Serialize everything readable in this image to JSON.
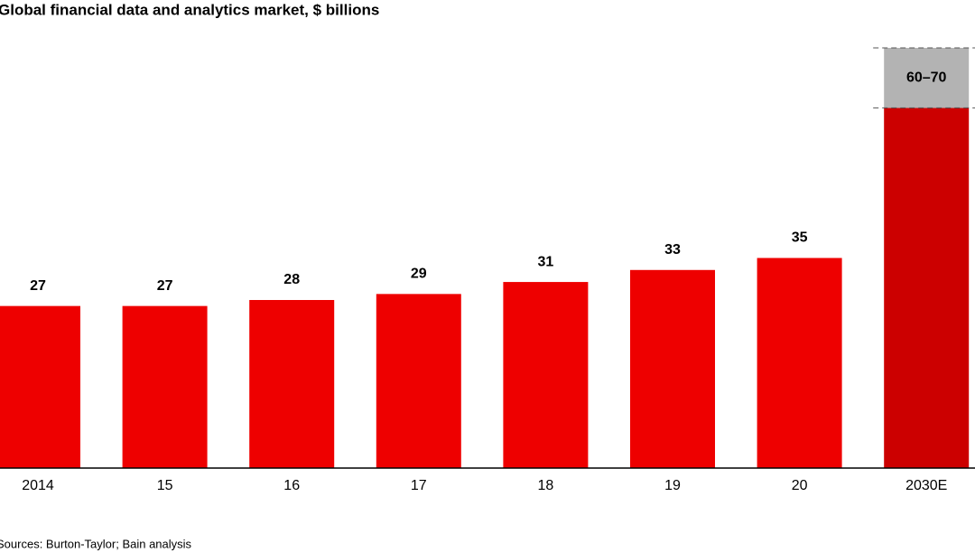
{
  "chart_data": {
    "type": "bar",
    "title": "Global financial data and analytics market, $ billions",
    "categories": [
      "2014",
      "15",
      "16",
      "17",
      "18",
      "19",
      "20",
      "2030E"
    ],
    "values": [
      27,
      27,
      28,
      29,
      31,
      33,
      35,
      60
    ],
    "value_labels": [
      "27",
      "27",
      "28",
      "29",
      "31",
      "33",
      "35",
      null
    ],
    "colors": [
      "#ee0000",
      "#ee0000",
      "#ee0000",
      "#ee0000",
      "#ee0000",
      "#ee0000",
      "#ee0000",
      "#cc0000"
    ],
    "range": {
      "low": 60,
      "high": 70,
      "label": "60–70",
      "color": "#b3b3b3"
    },
    "ylim": [
      0,
      70
    ],
    "source": "Sources: Burton-Taylor; Bain analysis"
  }
}
